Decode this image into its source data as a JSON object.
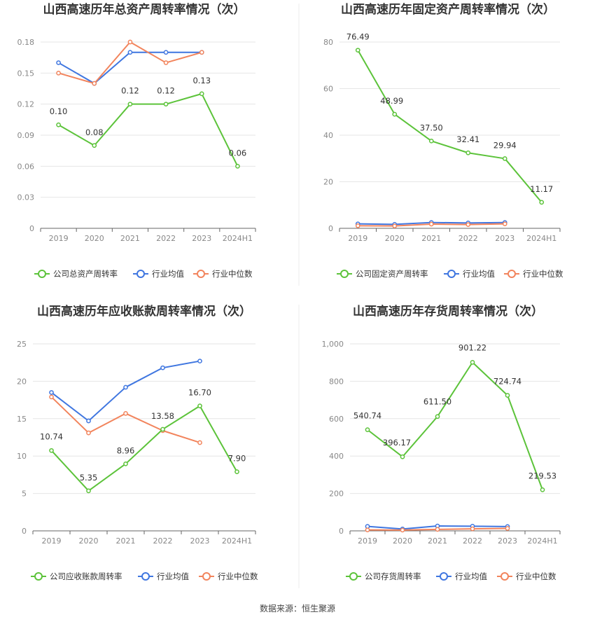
{
  "source": "数据来源：恒生聚源",
  "colors": {
    "company": "#5cc33a",
    "avg": "#3f76e0",
    "median": "#f2845c",
    "grid": "#e6e6e6",
    "axis": "#666666"
  },
  "chart_data": [
    {
      "type": "line",
      "title": "山西高速历年总资产周转率情况（次）",
      "categories": [
        "2019",
        "2020",
        "2021",
        "2022",
        "2023",
        "2024H1"
      ],
      "ylim": [
        0,
        0.18
      ],
      "yticks": [
        "0",
        "0.03",
        "0.06",
        "0.09",
        "0.12",
        "0.15",
        "0.18"
      ],
      "ytick_values": [
        0,
        0.03,
        0.06,
        0.09,
        0.12,
        0.15,
        0.18
      ],
      "series": [
        {
          "name": "公司总资产周转率",
          "role": "company",
          "values": [
            0.1,
            0.08,
            0.12,
            0.12,
            0.13,
            0.06
          ],
          "labels": [
            "0.10",
            "0.08",
            "0.12",
            "0.12",
            "0.13",
            "0.06"
          ]
        },
        {
          "name": "行业均值",
          "role": "avg",
          "values": [
            0.16,
            0.14,
            0.17,
            0.17,
            0.17,
            null
          ]
        },
        {
          "name": "行业中位数",
          "role": "median",
          "values": [
            0.15,
            0.14,
            0.18,
            0.16,
            0.17,
            null
          ]
        }
      ]
    },
    {
      "type": "line",
      "title": "山西高速历年固定资产周转率情况（次）",
      "categories": [
        "2019",
        "2020",
        "2021",
        "2022",
        "2023",
        "2024H1"
      ],
      "ylim": [
        0,
        80
      ],
      "yticks": [
        "0",
        "20",
        "40",
        "60",
        "80"
      ],
      "ytick_values": [
        0,
        20,
        40,
        60,
        80
      ],
      "series": [
        {
          "name": "公司固定资产周转率",
          "role": "company",
          "values": [
            76.49,
            48.99,
            37.5,
            32.41,
            29.94,
            11.17
          ],
          "labels": [
            "76.49",
            "48.99",
            "37.50",
            "32.41",
            "29.94",
            "11.17"
          ]
        },
        {
          "name": "行业均值",
          "role": "avg",
          "values": [
            1.9,
            1.7,
            2.5,
            2.3,
            2.5,
            null
          ]
        },
        {
          "name": "行业中位数",
          "role": "median",
          "values": [
            1.1,
            1.0,
            1.8,
            1.6,
            1.9,
            null
          ]
        }
      ]
    },
    {
      "type": "line",
      "title": "山西高速历年应收账款周转率情况（次）",
      "categories": [
        "2019",
        "2020",
        "2021",
        "2022",
        "2023",
        "2024H1"
      ],
      "ylim": [
        0,
        25
      ],
      "yticks": [
        "0",
        "5",
        "10",
        "15",
        "20",
        "25"
      ],
      "ytick_values": [
        0,
        5,
        10,
        15,
        20,
        25
      ],
      "series": [
        {
          "name": "公司应收账款周转率",
          "role": "company",
          "values": [
            10.74,
            5.35,
            8.96,
            13.58,
            16.7,
            7.9
          ],
          "labels": [
            "10.74",
            "5.35",
            "8.96",
            "13.58",
            "16.70",
            "7.90"
          ]
        },
        {
          "name": "行业均值",
          "role": "avg",
          "values": [
            18.5,
            14.7,
            19.2,
            21.8,
            22.7,
            null
          ]
        },
        {
          "name": "行业中位数",
          "role": "median",
          "values": [
            17.9,
            13.1,
            15.7,
            13.4,
            11.8,
            null
          ]
        }
      ]
    },
    {
      "type": "line",
      "title": "山西高速历年存货周转率情况（次）",
      "categories": [
        "2019",
        "2020",
        "2021",
        "2022",
        "2023",
        "2024H1"
      ],
      "ylim": [
        0,
        1000
      ],
      "yticks": [
        "0",
        "200",
        "400",
        "600",
        "800",
        "1,000"
      ],
      "ytick_values": [
        0,
        200,
        400,
        600,
        800,
        1000
      ],
      "series": [
        {
          "name": "公司存货周转率",
          "role": "company",
          "values": [
            540.74,
            396.17,
            611.5,
            901.22,
            724.74,
            219.53
          ],
          "labels": [
            "540.74",
            "396.17",
            "611.50",
            "901.22",
            "724.74",
            "219.53"
          ]
        },
        {
          "name": "行业均值",
          "role": "avg",
          "values": [
            24,
            10,
            26,
            25,
            23,
            null
          ]
        },
        {
          "name": "行业中位数",
          "role": "median",
          "values": [
            5,
            4,
            8,
            11,
            13,
            null
          ]
        }
      ]
    }
  ]
}
